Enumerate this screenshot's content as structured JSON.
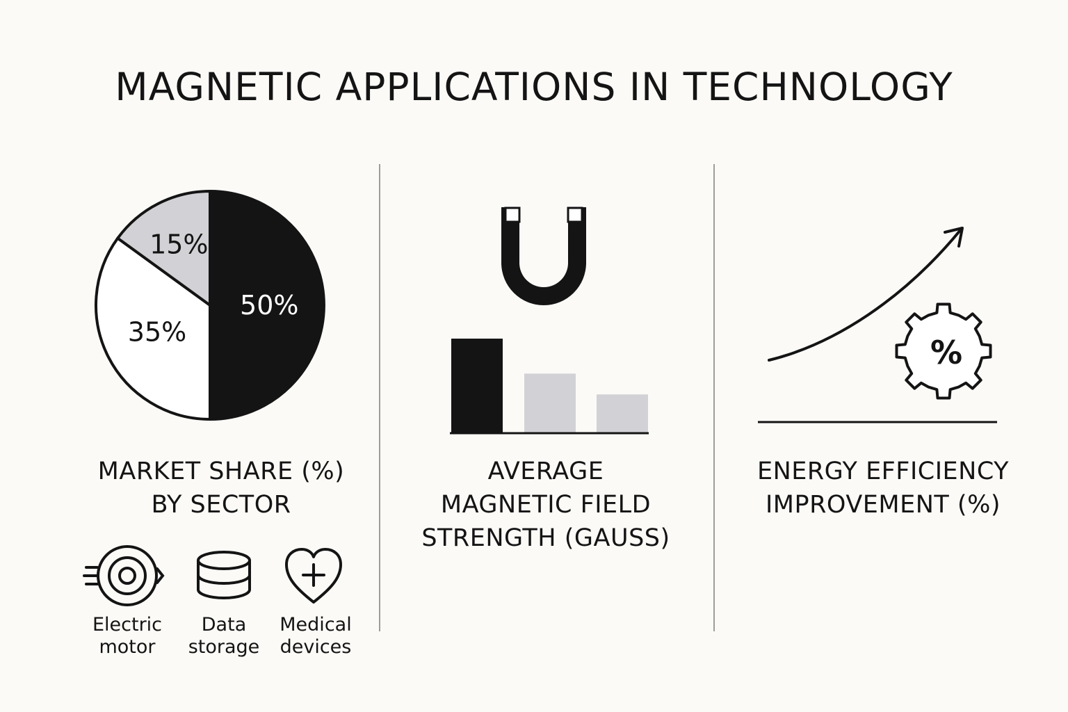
{
  "title": "MAGNETIC APPLICATIONS IN TECHNOLOGY",
  "colors": {
    "dark": "#141414",
    "light_gray": "#d2d2d6",
    "white": "#ffffff",
    "divider": "#9c9c9c"
  },
  "chart_data": [
    {
      "type": "pie",
      "title": "MARKET SHARE (%)\nBY SECTOR",
      "slices": [
        {
          "label": "50%",
          "value": 50,
          "color": "#141414",
          "label_color": "#ffffff"
        },
        {
          "label": "35%",
          "value": 35,
          "color": "#ffffff",
          "label_color": "#141414"
        },
        {
          "label": "15%",
          "value": 15,
          "color": "#d2d2d6",
          "label_color": "#141414"
        }
      ]
    },
    {
      "type": "bar",
      "title": "AVERAGE\nMAGNETIC FIELD\nSTRENGTH (GAUSS)",
      "values": [
        1.0,
        0.63,
        0.41
      ],
      "colors": [
        "#141414",
        "#d2d2d6",
        "#d2d2d6"
      ]
    },
    {
      "type": "line",
      "title": "ENERGY EFFICIENCY\nIMPROVEMENT (%)",
      "trend": "increasing",
      "badge": "%"
    }
  ],
  "sectors": [
    {
      "icon": "electric-motor-icon",
      "label": "Electric\nmotor"
    },
    {
      "icon": "data-storage-icon",
      "label": "Data\nstorage"
    },
    {
      "icon": "medical-heart-icon",
      "label": "Medical\ndevices"
    }
  ]
}
